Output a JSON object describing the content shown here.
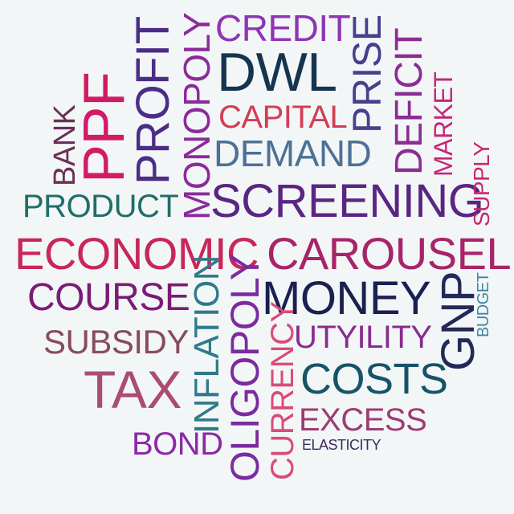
{
  "words": {
    "credit": {
      "text": "CREDIT",
      "color": "#8e35b5"
    },
    "dwl": {
      "text": "DWL",
      "color": "#16344f"
    },
    "profit": {
      "text": "PROFIT",
      "color": "#4a2d86"
    },
    "monopoly": {
      "text": "MONOPOLY",
      "color": "#8b2b9b"
    },
    "prise": {
      "text": "PRISE",
      "color": "#4a3e8f"
    },
    "deficit": {
      "text": "DEFICIT",
      "color": "#8b2d94"
    },
    "ppf": {
      "text": "PPF",
      "color": "#d21b67"
    },
    "bank": {
      "text": "BANK",
      "color": "#6b2f56"
    },
    "capital": {
      "text": "CAPITAL",
      "color": "#d23e55"
    },
    "market": {
      "text": "MARKET",
      "color": "#c52778"
    },
    "demand": {
      "text": "DEMAND",
      "color": "#4d7196"
    },
    "supply": {
      "text": "SUPPLY",
      "color": "#c6286e"
    },
    "product": {
      "text": "PRODUCT",
      "color": "#206e6a"
    },
    "screening": {
      "text": "SCREENING",
      "color": "#5a2583"
    },
    "economic": {
      "text": "ECONOMIC",
      "color": "#c8265c"
    },
    "carousel": {
      "text": "CAROUSEL",
      "color": "#a8246a"
    },
    "course": {
      "text": "COURSE",
      "color": "#7b1b76"
    },
    "inflation": {
      "text": "INFLATION",
      "color": "#2f7a8a"
    },
    "oligopoly": {
      "text": "OLIGOPOLY",
      "color": "#7b2ba0"
    },
    "money": {
      "text": "MONEY",
      "color": "#1a2050"
    },
    "gnp": {
      "text": "GNP",
      "color": "#232a58"
    },
    "budget": {
      "text": "BUDGET",
      "color": "#3d86a6"
    },
    "subsidy": {
      "text": "SUBSIDY",
      "color": "#874b5e"
    },
    "currency": {
      "text": "CURRENCY",
      "color": "#d84c7a"
    },
    "utyility": {
      "text": "UTYILITY",
      "color": "#872c8f"
    },
    "tax": {
      "text": "TAX",
      "color": "#aa4d72"
    },
    "costs": {
      "text": "COSTS",
      "color": "#17536a"
    },
    "excess": {
      "text": "EXCESS",
      "color": "#9b3d73"
    },
    "bond": {
      "text": "BOND",
      "color": "#8a2ba5"
    },
    "elasticity": {
      "text": "ELASTICITY",
      "color": "#3b2a5e"
    }
  }
}
